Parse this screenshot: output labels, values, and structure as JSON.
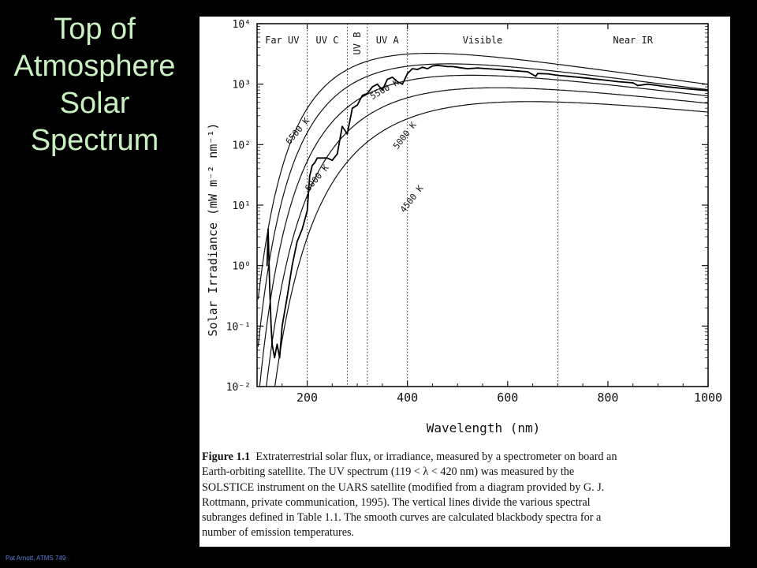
{
  "slide": {
    "title_lines": [
      "Top of",
      "Atmosphere",
      "Solar",
      "Spectrum"
    ],
    "footer": "Pat Arnott,  ATMS 749"
  },
  "chart_data": {
    "type": "line",
    "xlabel": "Wavelength (nm)",
    "ylabel": "Solar Irradiance (mW m⁻² nm⁻¹)",
    "xlim": [
      100,
      1000
    ],
    "ylim": [
      0.01,
      10000
    ],
    "yscale": "log",
    "xticks": [
      200,
      400,
      600,
      800,
      1000
    ],
    "ytick_labels": [
      {
        "value": 10000,
        "label": "10⁴"
      },
      {
        "value": 1000,
        "label": "10³"
      },
      {
        "value": 100,
        "label": "10²"
      },
      {
        "value": 10,
        "label": "10¹"
      },
      {
        "value": 1,
        "label": "10⁰"
      },
      {
        "value": 0.1,
        "label": "10⁻¹"
      },
      {
        "value": 0.01,
        "label": "10⁻²"
      }
    ],
    "band_dividers": [
      200,
      280,
      320,
      400,
      700
    ],
    "bands": [
      {
        "label": "Far UV",
        "x": 150
      },
      {
        "label": "UV C",
        "x": 240
      },
      {
        "label": "UV B",
        "x": 300,
        "rotated": true
      },
      {
        "label": "UV A",
        "x": 360
      },
      {
        "label": "Visible",
        "x": 550
      },
      {
        "label": "Near IR",
        "x": 850
      }
    ],
    "blackbody_series": [
      {
        "name": "6500 K",
        "T": 6500
      },
      {
        "name": "6000 K",
        "T": 6000
      },
      {
        "name": "5500 K",
        "T": 5500
      },
      {
        "name": "5000 K",
        "T": 5000
      },
      {
        "name": "4500 K",
        "T": 4500
      }
    ],
    "measured_series": {
      "x": [
        120,
        122,
        125,
        128,
        130,
        135,
        140,
        145,
        150,
        160,
        170,
        180,
        190,
        200,
        205,
        210,
        215,
        220,
        230,
        240,
        250,
        260,
        270,
        280,
        290,
        300,
        310,
        320,
        330,
        340,
        350,
        360,
        370,
        380,
        390,
        400,
        410,
        420,
        430,
        440,
        450,
        460,
        470,
        480,
        490,
        500,
        520,
        540,
        560,
        580,
        600,
        620,
        640,
        656,
        660,
        680,
        700,
        720,
        740,
        760,
        780,
        800,
        820,
        850,
        860,
        880,
        900,
        920,
        950,
        1000
      ],
      "y": [
        1.0,
        4.0,
        0.5,
        0.1,
        0.05,
        0.03,
        0.05,
        0.03,
        0.1,
        0.3,
        1.0,
        2.5,
        4.0,
        8.0,
        30,
        45,
        50,
        60,
        60,
        60,
        55,
        70,
        200,
        150,
        400,
        450,
        650,
        700,
        900,
        1000,
        800,
        1200,
        1300,
        1100,
        1000,
        1500,
        1800,
        1750,
        1900,
        1800,
        2000,
        2050,
        2000,
        1950,
        1950,
        1900,
        1800,
        1850,
        1800,
        1750,
        1700,
        1650,
        1600,
        1350,
        1500,
        1480,
        1400,
        1350,
        1300,
        1250,
        1200,
        1150,
        1100,
        1050,
        950,
        1000,
        950,
        900,
        850,
        780
      ]
    },
    "temperature_labels": [
      "6500 K",
      "6000 K",
      "5500 K",
      "5000 K",
      "4500 K"
    ]
  },
  "caption": {
    "label": "Figure 1.1",
    "lines": [
      "Extraterrestrial solar flux, or irradiance, measured by a spectrometer on board an",
      "Earth-orbiting satellite. The UV spectrum (119 < λ < 420 nm) was measured by the",
      "SOLSTICE instrument on the UARS satellite (modified from a diagram provided by G. J.",
      "Rottmann, private communication, 1995). The vertical lines divide the various spectral",
      "subranges defined in Table 1.1. The smooth curves are calculated blackbody spectra for a",
      "number of emission temperatures."
    ]
  }
}
